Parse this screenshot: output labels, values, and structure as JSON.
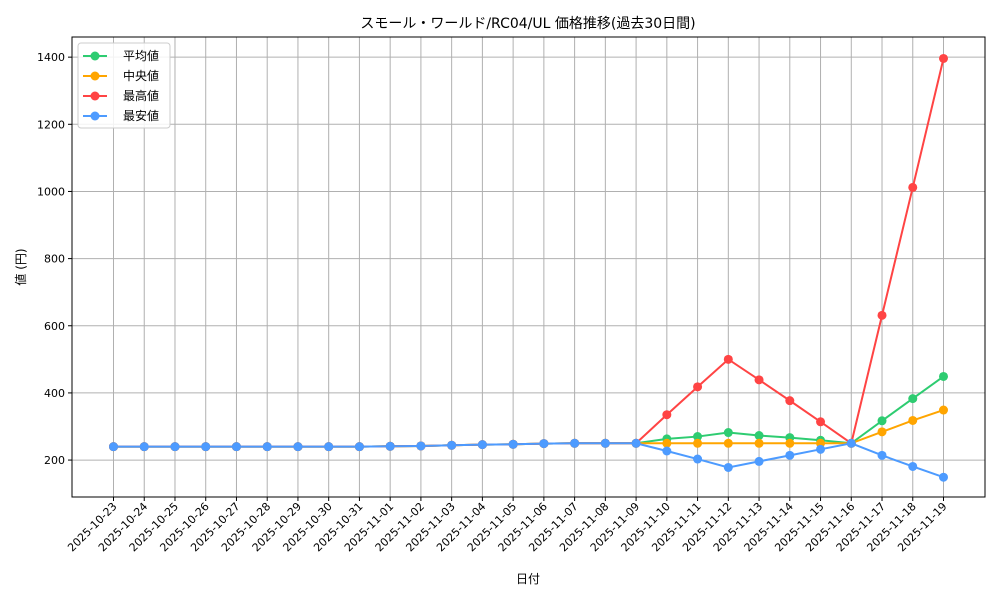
{
  "chart_data": {
    "type": "line",
    "title": "スモール・ワールド/RC04/UL 価格推移(過去30日間)",
    "xlabel": "日付",
    "ylabel": "値 (円)",
    "ylim": [
      90,
      1460
    ],
    "yticks": [
      200,
      400,
      600,
      800,
      1000,
      1200,
      1400
    ],
    "grid": true,
    "legend_position": "top-left",
    "x": [
      "2025-10-23",
      "2025-10-24",
      "2025-10-25",
      "2025-10-26",
      "2025-10-27",
      "2025-10-28",
      "2025-10-29",
      "2025-10-30",
      "2025-10-31",
      "2025-11-01",
      "2025-11-02",
      "2025-11-03",
      "2025-11-04",
      "2025-11-05",
      "2025-11-06",
      "2025-11-07",
      "2025-11-08",
      "2025-11-09",
      "2025-11-10",
      "2025-11-11",
      "2025-11-12",
      "2025-11-13",
      "2025-11-14",
      "2025-11-15",
      "2025-11-16",
      "2025-11-17",
      "2025-11-18",
      "2025-11-19"
    ],
    "series": [
      {
        "name": "平均値",
        "color": "#2ecc71",
        "values": [
          240,
          240,
          240,
          240,
          240,
          240,
          240,
          240,
          240,
          241,
          242,
          244,
          246,
          247,
          249,
          250,
          250,
          250,
          263,
          270,
          282,
          273,
          267,
          259,
          250,
          317,
          383,
          449
        ]
      },
      {
        "name": "中央値",
        "color": "#ffa500",
        "values": [
          240,
          240,
          240,
          240,
          240,
          240,
          240,
          240,
          240,
          241,
          242,
          244,
          246,
          247,
          249,
          250,
          250,
          250,
          250,
          250,
          250,
          250,
          250,
          250,
          250,
          284,
          318,
          349
        ]
      },
      {
        "name": "最高値",
        "color": "#ff4444",
        "values": [
          240,
          240,
          240,
          240,
          240,
          240,
          240,
          240,
          240,
          241,
          242,
          244,
          246,
          247,
          249,
          250,
          250,
          250,
          335,
          418,
          500,
          439,
          377,
          314,
          250,
          631,
          1012,
          1396
        ]
      },
      {
        "name": "最安値",
        "color": "#4d9bff",
        "values": [
          240,
          240,
          240,
          240,
          240,
          240,
          240,
          240,
          240,
          241,
          242,
          244,
          246,
          247,
          249,
          250,
          250,
          250,
          227,
          203,
          178,
          196,
          214,
          232,
          250,
          214,
          181,
          149
        ]
      }
    ]
  }
}
